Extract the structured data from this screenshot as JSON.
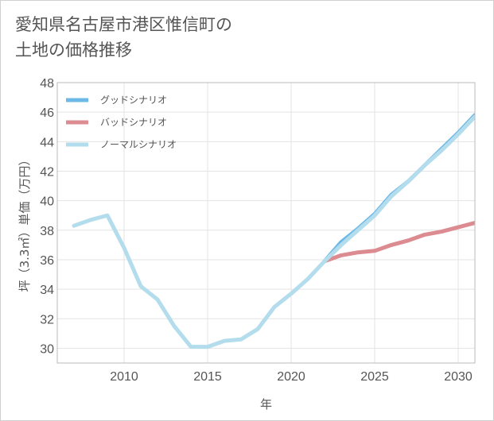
{
  "title_line1": "愛知県名古屋市港区惟信町の",
  "title_line2": "土地の価格推移",
  "chart_data": {
    "type": "line",
    "xlabel": "年",
    "ylabel": "坪（3.3㎡）単価（万円）",
    "xlim": [
      2006,
      2031
    ],
    "ylim": [
      29,
      48
    ],
    "xticks": [
      2010,
      2015,
      2020,
      2025,
      2030
    ],
    "yticks": [
      30,
      32,
      34,
      36,
      38,
      40,
      42,
      44,
      46,
      48
    ],
    "grid": true,
    "legend_position": "top-left",
    "series": [
      {
        "name": "グッドシナリオ",
        "color": "#6cb8e6",
        "x": [
          2022,
          2023,
          2024,
          2025,
          2026,
          2027,
          2028,
          2029,
          2030,
          2031
        ],
        "values": [
          35.9,
          37.2,
          38.1,
          39.1,
          40.4,
          41.3,
          42.4,
          43.5,
          44.6,
          45.8
        ]
      },
      {
        "name": "バッドシナリオ",
        "color": "#dc8b91",
        "x": [
          2022,
          2023,
          2024,
          2025,
          2026,
          2027,
          2028,
          2029,
          2030,
          2031
        ],
        "values": [
          35.9,
          36.3,
          36.5,
          36.6,
          37.0,
          37.3,
          37.7,
          37.9,
          38.2,
          38.5
        ]
      },
      {
        "name": "ノーマルシナリオ",
        "color": "#b3dcec",
        "x": [
          2007,
          2008,
          2009,
          2010,
          2011,
          2012,
          2013,
          2014,
          2015,
          2016,
          2017,
          2018,
          2019,
          2020,
          2021,
          2022,
          2023,
          2024,
          2025,
          2026,
          2027,
          2028,
          2029,
          2030,
          2031
        ],
        "values": [
          38.3,
          38.7,
          39.0,
          36.8,
          34.2,
          33.3,
          31.5,
          30.1,
          30.1,
          30.5,
          30.6,
          31.3,
          32.8,
          33.7,
          34.7,
          35.9,
          37.0,
          38.0,
          39.0,
          40.3,
          41.3,
          42.4,
          43.4,
          44.5,
          45.7
        ]
      }
    ]
  }
}
